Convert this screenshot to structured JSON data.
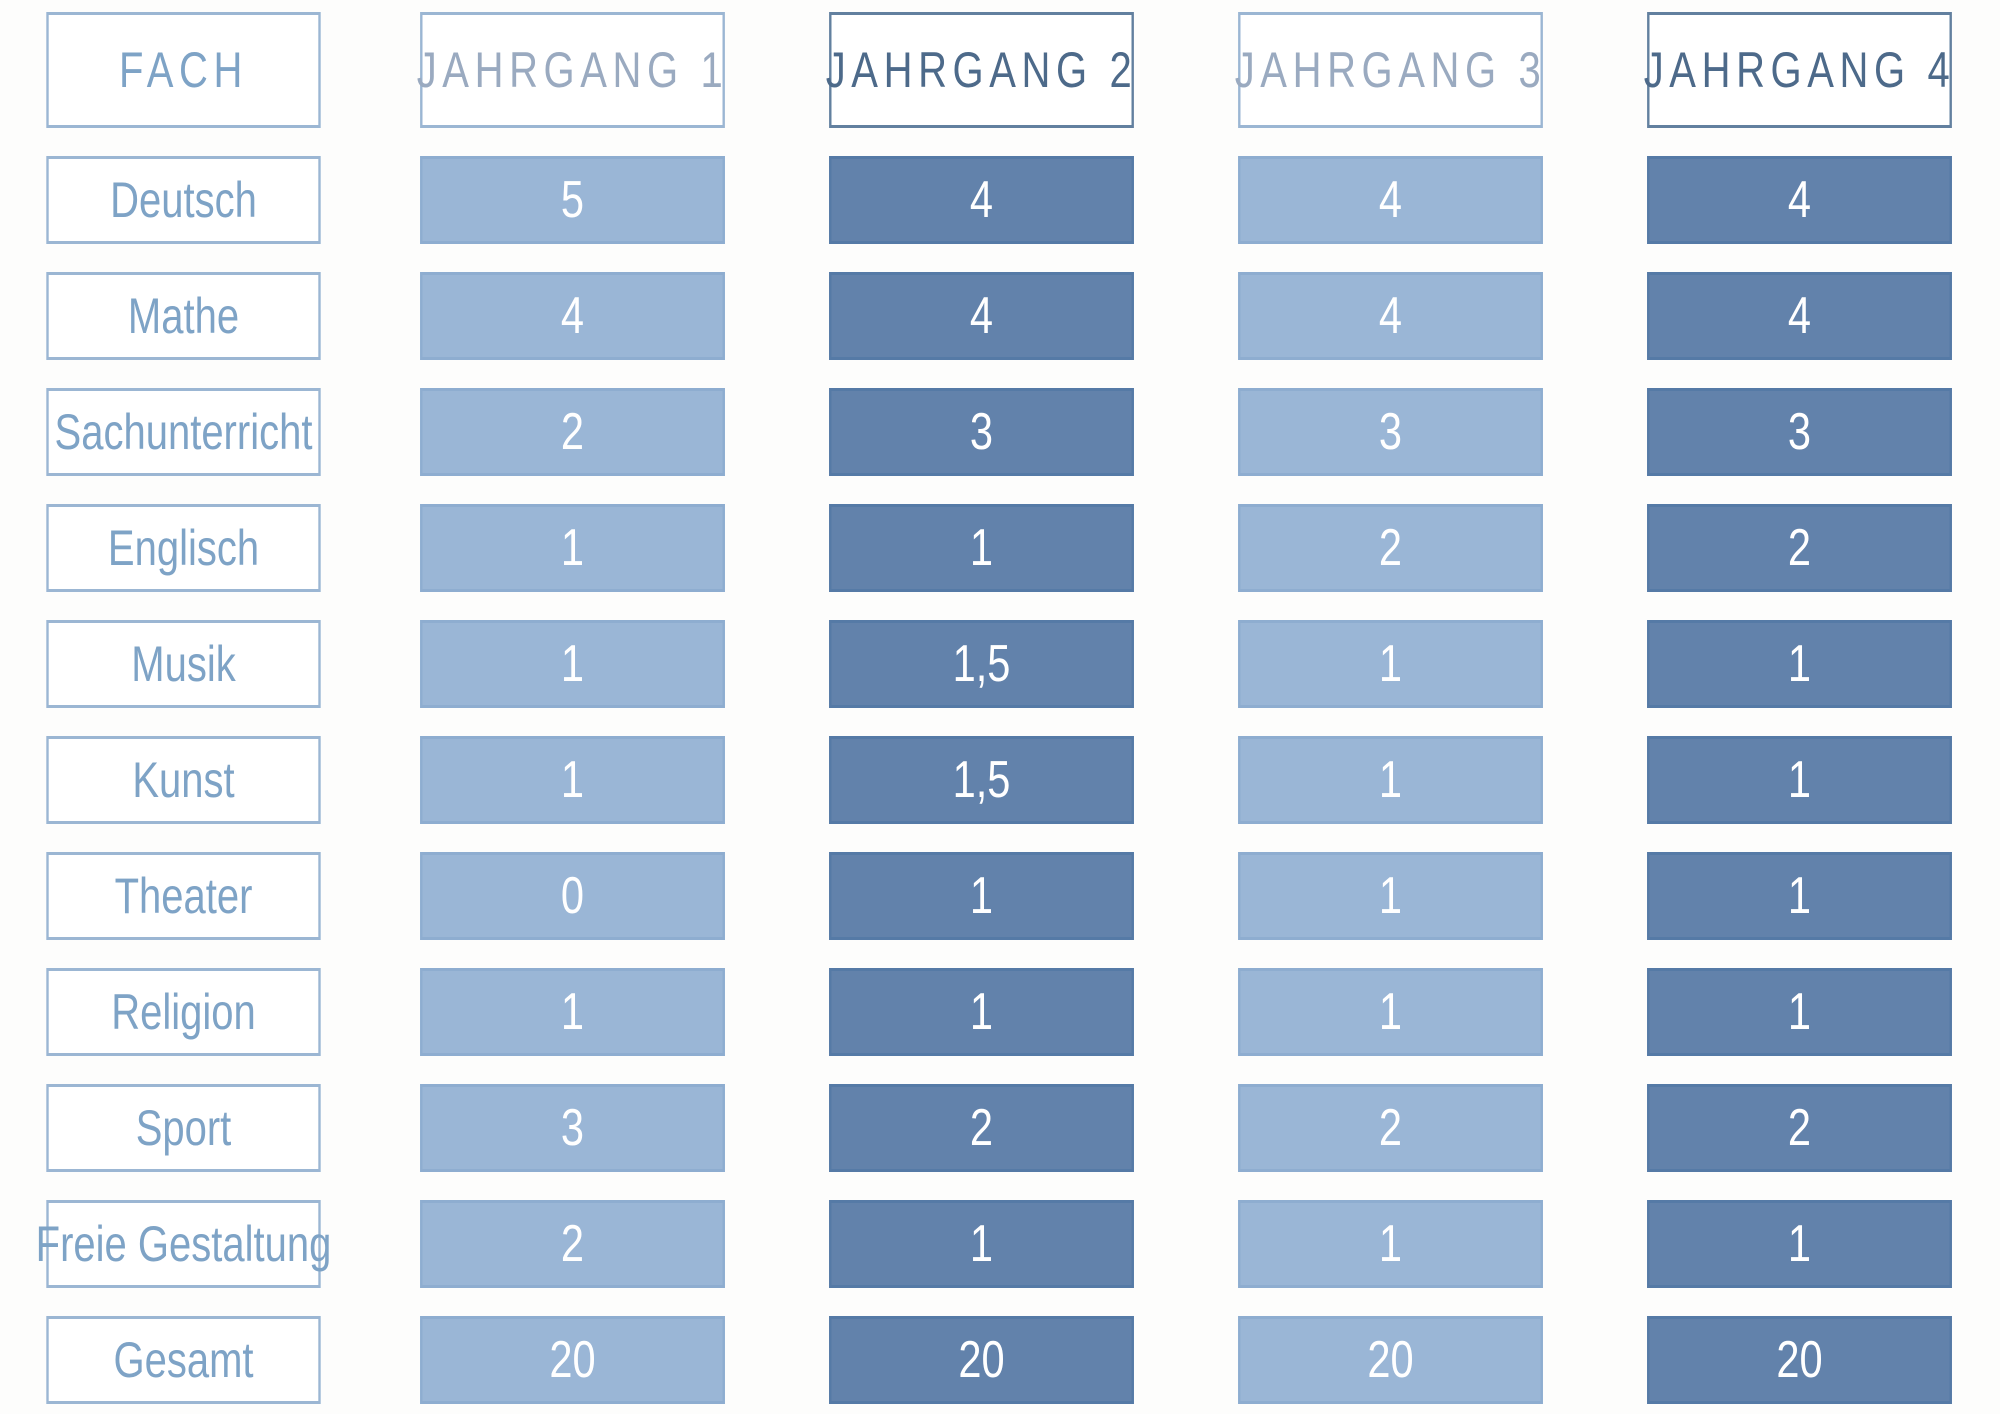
{
  "table": {
    "headers": [
      "FACH",
      "JAHRGANG 1",
      "JAHRGANG 2",
      "JAHRGANG 3",
      "JAHRGANG 4"
    ],
    "rows": [
      {
        "subject": "Deutsch",
        "values": [
          "5",
          "4",
          "4",
          "4"
        ]
      },
      {
        "subject": "Mathe",
        "values": [
          "4",
          "4",
          "4",
          "4"
        ]
      },
      {
        "subject": "Sachunterricht",
        "values": [
          "2",
          "3",
          "3",
          "3"
        ]
      },
      {
        "subject": "Englisch",
        "values": [
          "1",
          "1",
          "2",
          "2"
        ]
      },
      {
        "subject": "Musik",
        "values": [
          "1",
          "1,5",
          "1",
          "1"
        ]
      },
      {
        "subject": "Kunst",
        "values": [
          "1",
          "1,5",
          "1",
          "1"
        ]
      },
      {
        "subject": "Theater",
        "values": [
          "0",
          "1",
          "1",
          "1"
        ]
      },
      {
        "subject": "Religion",
        "values": [
          "1",
          "1",
          "1",
          "1"
        ]
      },
      {
        "subject": "Sport",
        "values": [
          "3",
          "2",
          "2",
          "2"
        ]
      },
      {
        "subject": "Freie Gestaltung",
        "values": [
          "2",
          "1",
          "1",
          "1"
        ]
      },
      {
        "subject": "Gesamt",
        "values": [
          "20",
          "20",
          "20",
          "20"
        ]
      }
    ]
  },
  "colors": {
    "light_column": "#9ab6d6",
    "dark_column": "#6282ab",
    "outline": "#9bb6d3",
    "subject_text": "#7ea3c6"
  },
  "chart_data": {
    "type": "table",
    "columns": [
      "FACH",
      "JAHRGANG 1",
      "JAHRGANG 2",
      "JAHRGANG 3",
      "JAHRGANG 4"
    ],
    "categories": [
      "Deutsch",
      "Mathe",
      "Sachunterricht",
      "Englisch",
      "Musik",
      "Kunst",
      "Theater",
      "Religion",
      "Sport",
      "Freie Gestaltung",
      "Gesamt"
    ],
    "series": [
      {
        "name": "JAHRGANG 1",
        "values": [
          5,
          4,
          2,
          1,
          1,
          1,
          0,
          1,
          3,
          2,
          20
        ]
      },
      {
        "name": "JAHRGANG 2",
        "values": [
          4,
          4,
          3,
          1,
          1.5,
          1.5,
          1,
          1,
          2,
          1,
          20
        ]
      },
      {
        "name": "JAHRGANG 3",
        "values": [
          4,
          4,
          3,
          2,
          1,
          1,
          1,
          1,
          2,
          1,
          20
        ]
      },
      {
        "name": "JAHRGANG 4",
        "values": [
          4,
          4,
          3,
          2,
          1,
          1,
          1,
          1,
          2,
          1,
          20
        ]
      }
    ]
  }
}
